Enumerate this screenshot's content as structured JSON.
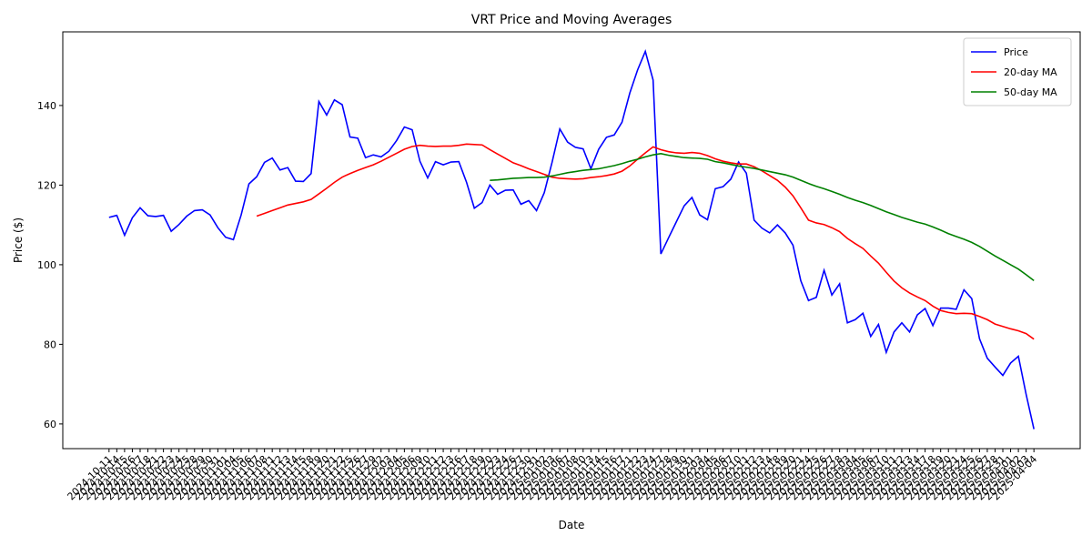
{
  "chart_data": {
    "type": "line",
    "title": "VRT Price and Moving Averages",
    "x_label": "Date",
    "y_label": "Price ($)",
    "categories": [
      "2024-10-11",
      "2024-10-14",
      "2024-10-15",
      "2024-10-16",
      "2024-10-17",
      "2024-10-18",
      "2024-10-21",
      "2024-10-22",
      "2024-10-23",
      "2024-10-24",
      "2024-10-25",
      "2024-10-28",
      "2024-10-29",
      "2024-10-30",
      "2024-10-31",
      "2024-11-01",
      "2024-11-04",
      "2024-11-05",
      "2024-11-06",
      "2024-11-07",
      "2024-11-08",
      "2024-11-11",
      "2024-11-12",
      "2024-11-13",
      "2024-11-14",
      "2024-11-15",
      "2024-11-18",
      "2024-11-19",
      "2024-11-20",
      "2024-11-21",
      "2024-11-22",
      "2024-11-25",
      "2024-11-26",
      "2024-11-27",
      "2024-11-29",
      "2024-12-02",
      "2024-12-03",
      "2024-12-04",
      "2024-12-05",
      "2024-12-06",
      "2024-12-09",
      "2024-12-10",
      "2024-12-11",
      "2024-12-12",
      "2024-12-13",
      "2024-12-16",
      "2024-12-17",
      "2024-12-18",
      "2024-12-19",
      "2024-12-20",
      "2024-12-23",
      "2024-12-24",
      "2024-12-26",
      "2024-12-27",
      "2024-12-30",
      "2024-12-31",
      "2025-01-02",
      "2025-01-03",
      "2025-01-06",
      "2025-01-07",
      "2025-01-08",
      "2025-01-10",
      "2025-01-13",
      "2025-01-14",
      "2025-01-15",
      "2025-01-16",
      "2025-01-17",
      "2025-01-21",
      "2025-01-22",
      "2025-01-23",
      "2025-01-24",
      "2025-01-27",
      "2025-01-28",
      "2025-01-29",
      "2025-01-30",
      "2025-01-31",
      "2025-02-03",
      "2025-02-04",
      "2025-02-05",
      "2025-02-06",
      "2025-02-07",
      "2025-02-10",
      "2025-02-11",
      "2025-02-12",
      "2025-02-13",
      "2025-02-14",
      "2025-02-18",
      "2025-02-19",
      "2025-02-20",
      "2025-02-21",
      "2025-02-24",
      "2025-02-25",
      "2025-02-26",
      "2025-02-27",
      "2025-02-28",
      "2025-03-03",
      "2025-03-04",
      "2025-03-05",
      "2025-03-06",
      "2025-03-07",
      "2025-03-10",
      "2025-03-11",
      "2025-03-12",
      "2025-03-13",
      "2025-03-14",
      "2025-03-17",
      "2025-03-18",
      "2025-03-19",
      "2025-03-20",
      "2025-03-21",
      "2025-03-24",
      "2025-03-25",
      "2025-03-26",
      "2025-03-27",
      "2025-03-28",
      "2025-03-31",
      "2025-04-01",
      "2025-04-02",
      "2025-04-03",
      "2025-04-04"
    ],
    "series": [
      {
        "name": "Price",
        "color": "#0000ff",
        "values": [
          111.9,
          112.4,
          107.4,
          111.8,
          114.3,
          112.3,
          112.1,
          112.4,
          108.4,
          110.1,
          112.2,
          113.6,
          113.8,
          112.5,
          109.3,
          106.9,
          106.3,
          112.5,
          120.3,
          122.1,
          125.7,
          126.8,
          123.8,
          124.4,
          121.0,
          120.9,
          122.9,
          141.0,
          137.6,
          141.4,
          140.2,
          132.1,
          131.8,
          126.9,
          127.6,
          127.1,
          128.5,
          131.2,
          134.6,
          133.9,
          126.0,
          121.8,
          125.9,
          125.1,
          125.8,
          125.9,
          120.7,
          114.2,
          115.6,
          120.0,
          117.7,
          118.7,
          118.8,
          115.2,
          116.1,
          113.6,
          118.1,
          125.7,
          134.1,
          130.8,
          129.5,
          129.1,
          124.1,
          129.0,
          132.0,
          132.6,
          135.8,
          143.1,
          148.9,
          153.6,
          146.4,
          102.7,
          106.8,
          110.8,
          114.8,
          116.9,
          112.5,
          111.3,
          119.1,
          119.6,
          121.5,
          125.8,
          123.0,
          111.2,
          109.2,
          108.0,
          110.0,
          108.0,
          104.9,
          96.0,
          91.0,
          91.8,
          98.6,
          92.4,
          95.2,
          85.4,
          86.2,
          87.8,
          82.0,
          85.0,
          78.0,
          83.1,
          85.4,
          83.1,
          87.4,
          89.0,
          84.7,
          89.1,
          89.1,
          88.8,
          93.7,
          91.5,
          81.4,
          76.5,
          74.3,
          72.2,
          75.3,
          77.0,
          67.4,
          58.7
        ]
      },
      {
        "name": "20-day MA",
        "color": "#ff0000",
        "values": [
          null,
          null,
          null,
          null,
          null,
          null,
          null,
          null,
          null,
          null,
          null,
          null,
          null,
          null,
          null,
          null,
          null,
          null,
          null,
          112.2,
          112.9,
          113.6,
          114.3,
          115.0,
          115.4,
          115.8,
          116.4,
          117.8,
          119.2,
          120.7,
          122.0,
          122.9,
          123.7,
          124.4,
          125.1,
          126.0,
          127.0,
          128.0,
          129.0,
          129.7,
          130.0,
          129.8,
          129.7,
          129.8,
          129.8,
          130.0,
          130.3,
          130.2,
          130.1,
          128.9,
          127.8,
          126.7,
          125.6,
          124.9,
          124.1,
          123.4,
          122.7,
          122.0,
          121.7,
          121.6,
          121.5,
          121.6,
          121.9,
          122.1,
          122.4,
          122.8,
          123.5,
          124.8,
          126.5,
          128.1,
          129.6,
          128.9,
          128.4,
          128.1,
          128.0,
          128.2,
          128.0,
          127.4,
          126.6,
          126.0,
          125.6,
          125.3,
          125.3,
          124.6,
          123.6,
          122.4,
          121.2,
          119.5,
          117.3,
          114.3,
          111.2,
          110.5,
          110.1,
          109.3,
          108.3,
          106.6,
          105.3,
          104.1,
          102.2,
          100.4,
          98.1,
          95.9,
          94.2,
          92.9,
          91.9,
          91.0,
          89.6,
          88.5,
          88.0,
          87.7,
          87.8,
          87.7,
          87.0,
          86.2,
          85.1,
          84.5,
          83.9,
          83.4,
          82.7,
          81.3
        ]
      },
      {
        "name": "50-day MA",
        "color": "#008000",
        "values": [
          null,
          null,
          null,
          null,
          null,
          null,
          null,
          null,
          null,
          null,
          null,
          null,
          null,
          null,
          null,
          null,
          null,
          null,
          null,
          null,
          null,
          null,
          null,
          null,
          null,
          null,
          null,
          null,
          null,
          null,
          null,
          null,
          null,
          null,
          null,
          null,
          null,
          null,
          null,
          null,
          null,
          null,
          null,
          null,
          null,
          null,
          null,
          null,
          null,
          121.2,
          121.3,
          121.5,
          121.7,
          121.8,
          121.9,
          121.9,
          122.0,
          122.3,
          122.7,
          123.1,
          123.4,
          123.7,
          123.9,
          124.1,
          124.5,
          124.9,
          125.4,
          126.0,
          126.5,
          127.1,
          127.6,
          127.9,
          127.5,
          127.2,
          126.9,
          126.8,
          126.7,
          126.5,
          125.9,
          125.6,
          125.2,
          124.8,
          124.5,
          124.2,
          123.8,
          123.4,
          123.0,
          122.6,
          122.0,
          121.2,
          120.4,
          119.7,
          119.1,
          118.4,
          117.7,
          116.9,
          116.2,
          115.6,
          114.9,
          114.1,
          113.3,
          112.6,
          111.9,
          111.3,
          110.7,
          110.2,
          109.5,
          108.7,
          107.8,
          107.1,
          106.4,
          105.6,
          104.6,
          103.4,
          102.2,
          101.1,
          100.0,
          98.9,
          97.5,
          96.0
        ]
      }
    ],
    "ylim": [
      53.8,
      158.5
    ],
    "yticks": [
      60,
      80,
      100,
      120,
      140
    ],
    "grid": false,
    "legend": "upper right"
  }
}
